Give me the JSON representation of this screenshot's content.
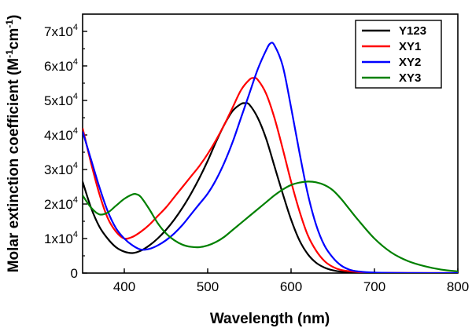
{
  "chart_data": {
    "type": "line",
    "title": "",
    "xlabel": "Wavelength (nm)",
    "ylabel_main": "Molar extinction coefficient (M",
    "ylabel_sup1": "-1",
    "ylabel_mid": "cm",
    "ylabel_sup2": "-1",
    "ylabel_end": ")",
    "xlim": [
      350,
      800
    ],
    "ylim": [
      0,
      75000
    ],
    "xticks": [
      400,
      500,
      600,
      700,
      800
    ],
    "xtick_labels": [
      "400",
      "500",
      "600",
      "700",
      "800"
    ],
    "yticks": [
      0,
      10000,
      20000,
      30000,
      40000,
      50000,
      60000,
      70000
    ],
    "ytick_labels": [
      {
        "base": "0",
        "exp": ""
      },
      {
        "base": "1x10",
        "exp": "4"
      },
      {
        "base": "2x10",
        "exp": "4"
      },
      {
        "base": "3x10",
        "exp": "4"
      },
      {
        "base": "4x10",
        "exp": "4"
      },
      {
        "base": "5x10",
        "exp": "4"
      },
      {
        "base": "6x10",
        "exp": "4"
      },
      {
        "base": "7x10",
        "exp": "4"
      }
    ],
    "legend_position": "top-right",
    "series": [
      {
        "name": "Y123",
        "color": "#000000",
        "x": [
          350,
          360,
          370,
          380,
          390,
          400,
          410,
          420,
          430,
          440,
          450,
          460,
          470,
          480,
          490,
          500,
          510,
          520,
          530,
          540,
          545,
          550,
          560,
          570,
          580,
          590,
          600,
          610,
          620,
          630,
          640,
          650,
          660,
          680,
          700,
          750,
          800
        ],
        "y": [
          26500,
          19000,
          13500,
          10000,
          7500,
          6200,
          5800,
          6500,
          8000,
          10000,
          12500,
          15500,
          19000,
          23000,
          27500,
          32500,
          38000,
          43000,
          47000,
          49000,
          49200,
          48800,
          45000,
          39000,
          31000,
          23000,
          15500,
          9500,
          5500,
          3000,
          1600,
          800,
          400,
          150,
          50,
          0,
          0
        ]
      },
      {
        "name": "XY1",
        "color": "#ff0000",
        "x": [
          350,
          360,
          370,
          380,
          390,
          400,
          410,
          420,
          430,
          440,
          450,
          460,
          470,
          480,
          490,
          500,
          510,
          520,
          530,
          540,
          550,
          555,
          560,
          570,
          580,
          590,
          600,
          610,
          620,
          630,
          640,
          650,
          660,
          680,
          700,
          750,
          800
        ],
        "y": [
          42000,
          32000,
          23000,
          16000,
          12000,
          10000,
          10500,
          12000,
          14000,
          16500,
          19000,
          22000,
          25000,
          28000,
          31000,
          34500,
          38500,
          43000,
          48000,
          53000,
          56000,
          56500,
          56000,
          52000,
          45000,
          36000,
          26500,
          18000,
          11000,
          6500,
          3500,
          1800,
          900,
          300,
          100,
          0,
          0
        ]
      },
      {
        "name": "XY2",
        "color": "#0000ff",
        "x": [
          350,
          360,
          370,
          380,
          390,
          400,
          410,
          420,
          430,
          440,
          450,
          460,
          470,
          480,
          490,
          500,
          510,
          520,
          530,
          540,
          550,
          560,
          570,
          575,
          580,
          590,
          600,
          610,
          620,
          630,
          640,
          650,
          660,
          670,
          680,
          700,
          750,
          800
        ],
        "y": [
          41000,
          33000,
          25000,
          18000,
          13000,
          10000,
          8000,
          6800,
          7000,
          8000,
          9500,
          11500,
          14000,
          17000,
          20000,
          23000,
          27000,
          32000,
          38000,
          45000,
          52000,
          59000,
          64500,
          66500,
          66000,
          60000,
          48000,
          35000,
          23000,
          14000,
          8000,
          4500,
          2200,
          1000,
          500,
          150,
          0,
          0
        ]
      },
      {
        "name": "XY3",
        "color": "#008000",
        "x": [
          350,
          360,
          370,
          380,
          390,
          400,
          410,
          415,
          420,
          430,
          440,
          450,
          460,
          470,
          480,
          490,
          500,
          510,
          520,
          530,
          540,
          550,
          560,
          570,
          580,
          590,
          600,
          610,
          620,
          630,
          640,
          650,
          660,
          670,
          680,
          700,
          720,
          740,
          760,
          780,
          800
        ],
        "y": [
          22500,
          19000,
          17000,
          17500,
          19500,
          21500,
          22800,
          22800,
          22000,
          18500,
          14500,
          11500,
          9500,
          8200,
          7600,
          7500,
          8000,
          9000,
          10500,
          12500,
          14500,
          16500,
          18500,
          20500,
          22500,
          24200,
          25500,
          26200,
          26500,
          26300,
          25500,
          24000,
          21500,
          18500,
          15500,
          10000,
          6000,
          3500,
          2000,
          1000,
          500
        ]
      }
    ]
  }
}
